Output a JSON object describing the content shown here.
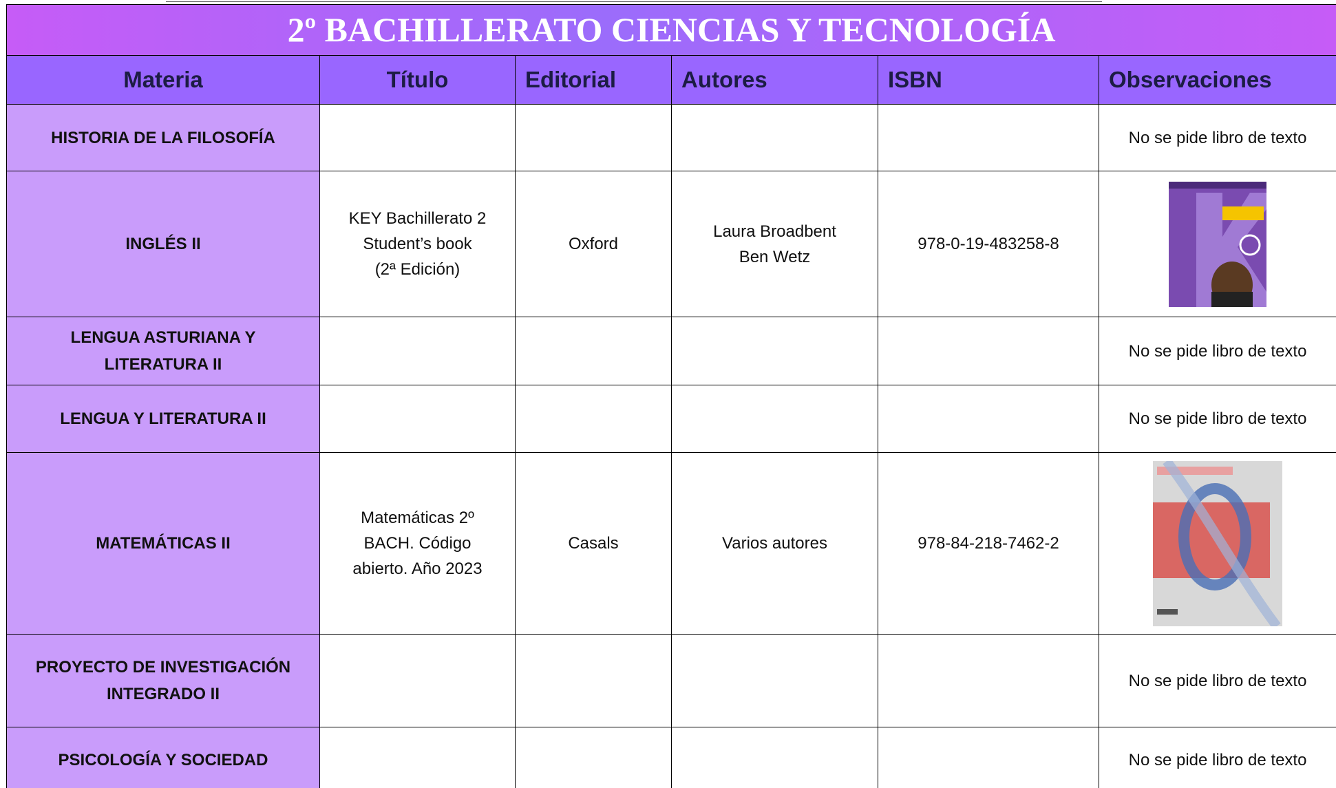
{
  "title": "2º BACHILLERATO CIENCIAS Y TECNOLOGÍA",
  "table": {
    "header": [
      "Materia",
      "Título",
      "Editorial",
      "Autores",
      "ISBN",
      "Observaciones"
    ],
    "rows": [
      {
        "materia": "HISTORIA DE LA FILOSOFÍA",
        "observaciones": "No se pide libro de texto"
      },
      {
        "materia": "INGLÉS II",
        "titulo": "KEY Bachillerato 2\nStudent’s book\n(2ª Edición)",
        "editorial": "Oxford",
        "autores": "Laura Broadbent\nBen Wetz",
        "isbn": "978-0-19-483258-8"
      },
      {
        "materia": "LENGUA ASTURIANA Y\nLITERATURA II",
        "observaciones": "No se pide libro de texto"
      },
      {
        "materia": "LENGUA Y LITERATURA II",
        "observaciones": "No se pide libro de texto"
      },
      {
        "materia": "MATEMÁTICAS II",
        "titulo": "Matemáticas 2º\nBACH. Código\nabierto. Año 2023",
        "editorial": "Casals",
        "autores": "Varios autores",
        "isbn": "978-84-218-7462-2"
      },
      {
        "materia": "PROYECTO DE INVESTIGACIÓN\nINTEGRADO II",
        "observaciones": "No se pide libro de texto"
      },
      {
        "materia": "PSICOLOGÍA Y SOCIEDAD",
        "observaciones": "No se pide libro de texto"
      }
    ]
  }
}
